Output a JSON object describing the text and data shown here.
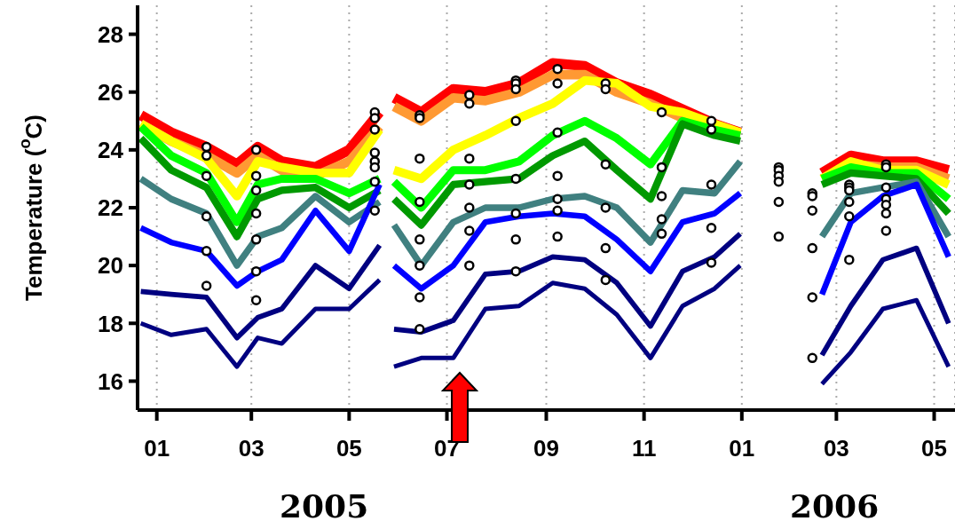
{
  "chart_data": {
    "type": "line",
    "ylabel": "Temperature ($^{o}$C)",
    "annotations": [
      "2005",
      "2006"
    ],
    "x": [
      "2004-12-22",
      "2005-01-10",
      "2005-02-01",
      "2005-02-20",
      "2005-03-05",
      "2005-03-20",
      "2005-04-10",
      "2005-05-01",
      "2005-05-20",
      "2005-05-25",
      "2005-05-29",
      "2005-06-15",
      "2005-07-05",
      "2005-07-25",
      "2005-08-15",
      "2005-09-05",
      "2005-09-25",
      "2005-10-15",
      "2005-11-05",
      "2005-11-25",
      "2005-12-15",
      "2005-12-31",
      "2006-01-30",
      "2006-02-20",
      "2006-03-10",
      "2006-03-30",
      "2006-04-20",
      "2006-05-10"
    ],
    "series": [
      {
        "color": "#ff0000",
        "values": [
          25.2,
          24.6,
          24.1,
          23.5,
          24.1,
          23.6,
          23.4,
          24.0,
          25.3,
          null,
          25.8,
          25.3,
          26.1,
          26.0,
          26.3,
          27.0,
          26.9,
          26.3,
          25.9,
          25.4,
          24.9,
          24.6,
          null,
          23.2,
          23.8,
          23.6,
          23.6,
          23.3
        ]
      },
      {
        "color": "#ff9933",
        "values": [
          24.9,
          24.3,
          23.8,
          23.2,
          23.8,
          23.3,
          23.1,
          23.6,
          24.8,
          null,
          25.5,
          25.0,
          25.8,
          25.7,
          26.0,
          26.6,
          26.6,
          26.0,
          25.6,
          25.1,
          24.7,
          24.5,
          null,
          23.0,
          23.5,
          23.4,
          23.4,
          23.0
        ]
      },
      {
        "color": "#ffff00",
        "values": [
          24.9,
          24.3,
          23.7,
          22.4,
          23.6,
          23.4,
          23.2,
          23.2,
          24.7,
          null,
          23.3,
          23.0,
          24.0,
          24.5,
          25.1,
          25.6,
          26.4,
          26.3,
          25.5,
          25.3,
          24.9,
          24.6,
          null,
          23.0,
          23.6,
          23.3,
          23.3,
          22.8
        ]
      },
      {
        "color": "#00ff00",
        "values": [
          24.8,
          23.8,
          23.2,
          21.5,
          22.8,
          23.0,
          23.0,
          22.5,
          23.0,
          null,
          22.9,
          22.0,
          23.3,
          23.3,
          23.6,
          24.5,
          25.0,
          24.4,
          23.5,
          25.0,
          24.7,
          24.5,
          null,
          23.0,
          23.4,
          23.2,
          23.2,
          22.3
        ]
      },
      {
        "color": "#009900",
        "values": [
          24.4,
          23.3,
          22.7,
          21.0,
          22.3,
          22.6,
          22.7,
          22.0,
          22.6,
          null,
          22.3,
          21.4,
          22.8,
          22.9,
          23.0,
          23.8,
          24.3,
          23.3,
          22.3,
          24.9,
          24.5,
          24.3,
          null,
          22.8,
          23.2,
          23.1,
          23.0,
          21.8
        ]
      },
      {
        "color": "#408080",
        "values": [
          23.0,
          22.3,
          21.8,
          20.0,
          21.0,
          21.3,
          22.4,
          21.5,
          22.2,
          null,
          21.4,
          20.0,
          21.5,
          22.0,
          22.0,
          22.3,
          22.4,
          22.0,
          20.8,
          22.6,
          22.5,
          23.6,
          null,
          21.0,
          22.5,
          22.7,
          22.9,
          21.0
        ]
      },
      {
        "color": "#0000ff",
        "values": [
          21.3,
          20.8,
          20.5,
          19.3,
          19.8,
          20.2,
          21.9,
          20.5,
          22.8,
          null,
          20.0,
          19.2,
          20.0,
          21.5,
          21.7,
          21.8,
          21.7,
          20.9,
          19.8,
          21.5,
          21.8,
          22.5,
          null,
          19.0,
          21.5,
          22.4,
          22.8,
          20.3
        ]
      },
      {
        "color": "#000080",
        "values": [
          19.1,
          19.0,
          18.9,
          17.5,
          18.2,
          18.5,
          20.0,
          19.2,
          20.7,
          null,
          17.8,
          17.7,
          18.1,
          19.7,
          19.8,
          20.3,
          20.2,
          19.4,
          17.9,
          19.8,
          20.3,
          21.1,
          null,
          16.9,
          18.6,
          20.2,
          20.6,
          18.0
        ]
      },
      {
        "color": "#000080",
        "values": [
          18.0,
          17.6,
          17.8,
          16.5,
          17.5,
          17.3,
          18.5,
          18.5,
          19.5,
          null,
          16.5,
          16.8,
          16.8,
          18.5,
          18.6,
          19.4,
          19.2,
          18.3,
          16.8,
          18.6,
          19.2,
          20.0,
          null,
          15.9,
          17.0,
          18.5,
          18.8,
          16.5
        ]
      },
      {
        "type": "scatter",
        "marker": "circle",
        "color": "#000000",
        "x": [
          "2005-02-01",
          "2005-02-01",
          "2005-02-01",
          "2005-02-01",
          "2005-02-01",
          "2005-02-01",
          "2005-03-04",
          "2005-03-04",
          "2005-03-04",
          "2005-03-04",
          "2005-03-04",
          "2005-03-04",
          "2005-03-04",
          "2005-05-17",
          "2005-05-17",
          "2005-05-17",
          "2005-05-17",
          "2005-05-17",
          "2005-05-17",
          "2005-05-17",
          "2005-05-17",
          "2005-06-14",
          "2005-06-14",
          "2005-06-14",
          "2005-06-14",
          "2005-06-14",
          "2005-06-14",
          "2005-06-14",
          "2005-06-14",
          "2005-07-15",
          "2005-07-15",
          "2005-07-15",
          "2005-07-15",
          "2005-07-15",
          "2005-07-15",
          "2005-07-15",
          "2005-08-13",
          "2005-08-13",
          "2005-08-13",
          "2005-08-13",
          "2005-08-13",
          "2005-08-13",
          "2005-08-13",
          "2005-08-13",
          "2005-09-08",
          "2005-09-08",
          "2005-09-08",
          "2005-09-08",
          "2005-09-08",
          "2005-09-08",
          "2005-09-08",
          "2005-10-08",
          "2005-10-08",
          "2005-10-08",
          "2005-10-08",
          "2005-10-08",
          "2005-10-08",
          "2005-11-12",
          "2005-11-12",
          "2005-11-12",
          "2005-11-12",
          "2005-11-12",
          "2005-12-13",
          "2005-12-13",
          "2005-12-13",
          "2005-12-13",
          "2005-12-13",
          "2006-01-24",
          "2006-01-24",
          "2006-01-24",
          "2006-01-24",
          "2006-01-24",
          "2006-01-24",
          "2006-02-14",
          "2006-02-14",
          "2006-02-14",
          "2006-02-14",
          "2006-02-14",
          "2006-02-14",
          "2006-03-09",
          "2006-03-09",
          "2006-03-09",
          "2006-03-09",
          "2006-03-09",
          "2006-03-09",
          "2006-04-01",
          "2006-04-01",
          "2006-04-01",
          "2006-04-01",
          "2006-04-01",
          "2006-04-01",
          "2006-04-01"
        ],
        "values": [
          24.1,
          23.8,
          23.1,
          21.7,
          20.5,
          19.3,
          24.0,
          23.1,
          22.6,
          21.8,
          20.9,
          19.8,
          18.8,
          25.3,
          25.1,
          24.7,
          23.9,
          23.6,
          23.4,
          22.9,
          21.9,
          25.2,
          25.1,
          23.7,
          22.2,
          20.9,
          20.0,
          18.9,
          17.8,
          25.9,
          25.6,
          23.7,
          22.8,
          22.0,
          21.2,
          20.0,
          26.4,
          26.3,
          26.1,
          25.0,
          23.0,
          21.8,
          20.9,
          19.8,
          26.8,
          26.3,
          24.6,
          23.1,
          22.3,
          21.9,
          21.0,
          26.3,
          26.1,
          23.5,
          22.0,
          20.6,
          19.5,
          25.3,
          23.4,
          22.4,
          21.6,
          21.1,
          25.0,
          24.7,
          22.8,
          21.3,
          20.1,
          23.4,
          23.3,
          23.1,
          22.9,
          22.2,
          21.0,
          22.5,
          22.4,
          21.9,
          20.6,
          18.9,
          16.8,
          22.8,
          22.7,
          22.6,
          22.2,
          21.7,
          20.2,
          23.5,
          23.4,
          22.7,
          22.3,
          22.1,
          21.8,
          21.2
        ]
      }
    ],
    "xlim": [
      "2004-12-20",
      "2006-05-14"
    ],
    "xticks": [
      {
        "value": "2005-01-01",
        "label": "01"
      },
      {
        "value": "2005-03-01",
        "label": "03"
      },
      {
        "value": "2005-05-01",
        "label": "05"
      },
      {
        "value": "2005-07-01",
        "label": "07"
      },
      {
        "value": "2005-09-01",
        "label": "09"
      },
      {
        "value": "2005-11-01",
        "label": "11"
      },
      {
        "value": "2006-01-01",
        "label": "01"
      },
      {
        "value": "2006-03-01",
        "label": "03"
      },
      {
        "value": "2006-05-01",
        "label": "05"
      }
    ],
    "ylim": [
      15,
      29
    ],
    "yticks": [
      16,
      18,
      20,
      22,
      24,
      26,
      28
    ],
    "grid": "x"
  }
}
